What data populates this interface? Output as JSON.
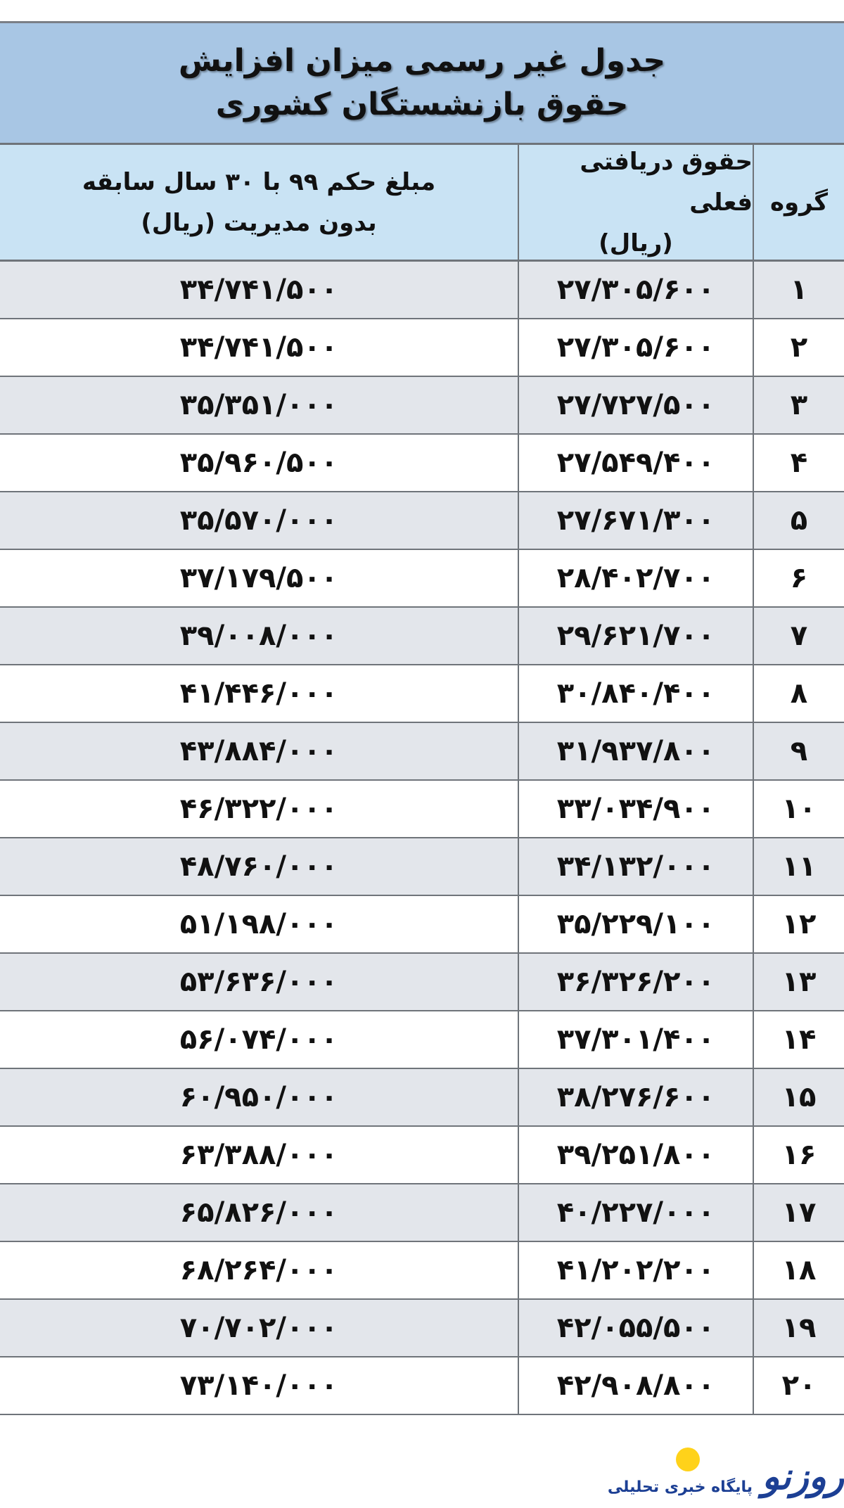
{
  "title": {
    "line1": "جدول غیر رسمی میزان افزایش",
    "line2": "حقوق بازنشستگان کشوری"
  },
  "headers": {
    "group": "گروه",
    "current_line1": "حقوق دریافتی فعلی",
    "current_line2": "(ریال)",
    "new_line1": "مبلغ حکم ۹۹ با ۳۰ سال سابقه",
    "new_line2": "بدون مدیریت (ریال)"
  },
  "rows": [
    {
      "group": "۱",
      "current": "۲۷/۳۰۵/۶۰۰",
      "new": "۳۴/۷۴۱/۵۰۰"
    },
    {
      "group": "۲",
      "current": "۲۷/۳۰۵/۶۰۰",
      "new": "۳۴/۷۴۱/۵۰۰"
    },
    {
      "group": "۳",
      "current": "۲۷/۷۲۷/۵۰۰",
      "new": "۳۵/۳۵۱/۰۰۰"
    },
    {
      "group": "۴",
      "current": "۲۷/۵۴۹/۴۰۰",
      "new": "۳۵/۹۶۰/۵۰۰"
    },
    {
      "group": "۵",
      "current": "۲۷/۶۷۱/۳۰۰",
      "new": "۳۵/۵۷۰/۰۰۰"
    },
    {
      "group": "۶",
      "current": "۲۸/۴۰۲/۷۰۰",
      "new": "۳۷/۱۷۹/۵۰۰"
    },
    {
      "group": "۷",
      "current": "۲۹/۶۲۱/۷۰۰",
      "new": "۳۹/۰۰۸/۰۰۰"
    },
    {
      "group": "۸",
      "current": "۳۰/۸۴۰/۴۰۰",
      "new": "۴۱/۴۴۶/۰۰۰"
    },
    {
      "group": "۹",
      "current": "۳۱/۹۳۷/۸۰۰",
      "new": "۴۳/۸۸۴/۰۰۰"
    },
    {
      "group": "۱۰",
      "current": "۳۳/۰۳۴/۹۰۰",
      "new": "۴۶/۳۲۲/۰۰۰"
    },
    {
      "group": "۱۱",
      "current": "۳۴/۱۳۲/۰۰۰",
      "new": "۴۸/۷۶۰/۰۰۰"
    },
    {
      "group": "۱۲",
      "current": "۳۵/۲۲۹/۱۰۰",
      "new": "۵۱/۱۹۸/۰۰۰"
    },
    {
      "group": "۱۳",
      "current": "۳۶/۳۲۶/۲۰۰",
      "new": "۵۳/۶۳۶/۰۰۰"
    },
    {
      "group": "۱۴",
      "current": "۳۷/۳۰۱/۴۰۰",
      "new": "۵۶/۰۷۴/۰۰۰"
    },
    {
      "group": "۱۵",
      "current": "۳۸/۲۷۶/۶۰۰",
      "new": "۶۰/۹۵۰/۰۰۰"
    },
    {
      "group": "۱۶",
      "current": "۳۹/۲۵۱/۸۰۰",
      "new": "۶۳/۳۸۸/۰۰۰"
    },
    {
      "group": "۱۷",
      "current": "۴۰/۲۲۷/۰۰۰",
      "new": "۶۵/۸۲۶/۰۰۰"
    },
    {
      "group": "۱۸",
      "current": "۴۱/۲۰۲/۲۰۰",
      "new": "۶۸/۲۶۴/۰۰۰"
    },
    {
      "group": "۱۹",
      "current": "۴۲/۰۵۵/۵۰۰",
      "new": "۷۰/۷۰۲/۰۰۰"
    },
    {
      "group": "۲۰",
      "current": "۴۲/۹۰۸/۸۰۰",
      "new": "۷۳/۱۴۰/۰۰۰"
    }
  ],
  "logo": {
    "brand": "روزنو",
    "tagline": "پایگاه خبری تحلیلی"
  },
  "colors": {
    "title_band": "#a8c6e4",
    "header_band": "#c9e3f4",
    "alt_row": "#e3e6eb",
    "logo_blue": "#1c3f94",
    "logo_yellow": "#ffd21a"
  }
}
